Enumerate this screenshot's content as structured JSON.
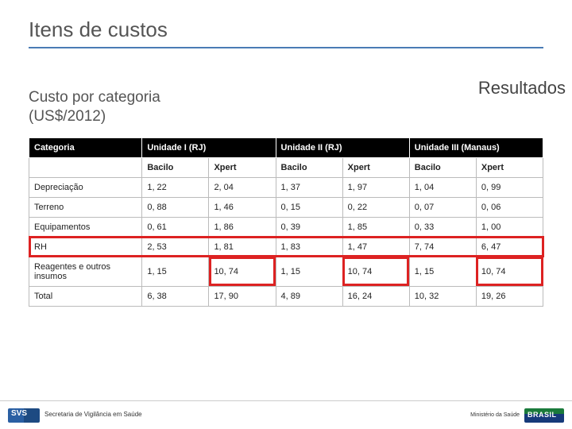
{
  "slide": {
    "title": "Itens de custos",
    "resultados_label": "Resultados",
    "subtitle_line1": "Custo por categoria",
    "subtitle_line2": "(US$/2012)"
  },
  "table": {
    "col_cat_header": "Categoria",
    "unit_headers": [
      "Unidade I (RJ)",
      "Unidade II (RJ)",
      "Unidade III (Manaus)"
    ],
    "sub_headers": [
      "Bacilo",
      "Xpert",
      "Bacilo",
      "Xpert",
      "Bacilo",
      "Xpert"
    ],
    "rows": [
      {
        "label": "Depreciação",
        "vals": [
          "1, 22",
          "2, 04",
          "1, 37",
          "1, 97",
          "1, 04",
          "0, 99"
        ],
        "row_hl": false,
        "cell_hl": []
      },
      {
        "label": "Terreno",
        "vals": [
          "0, 88",
          "1, 46",
          "0, 15",
          "0, 22",
          "0, 07",
          "0, 06"
        ],
        "row_hl": false,
        "cell_hl": []
      },
      {
        "label": "Equipamentos",
        "vals": [
          "0, 61",
          "1, 86",
          "0, 39",
          "1, 85",
          "0, 33",
          "1, 00"
        ],
        "row_hl": false,
        "cell_hl": []
      },
      {
        "label": "RH",
        "vals": [
          "2, 53",
          "1, 81",
          "1, 83",
          "1, 47",
          "7, 74",
          "6, 47"
        ],
        "row_hl": true,
        "cell_hl": []
      },
      {
        "label": "Reagentes e outros insumos",
        "vals": [
          "1, 15",
          "10, 74",
          "1, 15",
          "10, 74",
          "1, 15",
          "10, 74"
        ],
        "row_hl": false,
        "cell_hl": [
          1,
          3,
          5
        ]
      },
      {
        "label": "Total",
        "vals": [
          "6, 38",
          "17, 90",
          "4, 89",
          "16, 24",
          "10, 32",
          "19, 26"
        ],
        "row_hl": false,
        "cell_hl": []
      }
    ],
    "highlight_color": "#d22222",
    "header_bg": "#000000",
    "header_fg": "#ffffff",
    "border_color": "#bbbbbb"
  },
  "footer": {
    "svs_text": "Secretaria de\nVigilância em Saúde",
    "min_text": "Ministério da\nSaúde",
    "brasil_text": "BRASIL"
  }
}
